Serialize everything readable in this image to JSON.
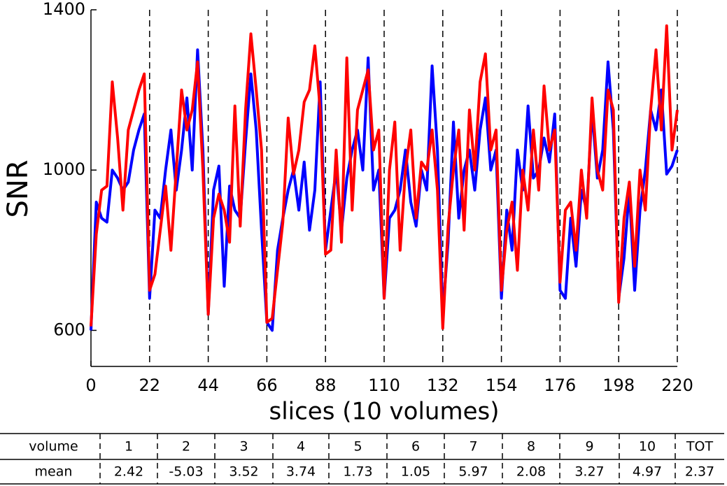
{
  "chart_data": {
    "type": "line",
    "ylabel": "SNR",
    "xlabel": "slices (10 volumes)",
    "x": [
      0,
      2,
      4,
      6,
      8,
      10,
      12,
      14,
      16,
      18,
      20,
      22,
      24,
      26,
      28,
      30,
      32,
      34,
      36,
      38,
      40,
      42,
      44,
      46,
      48,
      50,
      52,
      54,
      56,
      58,
      60,
      62,
      64,
      66,
      68,
      70,
      72,
      74,
      76,
      78,
      80,
      82,
      84,
      86,
      88,
      90,
      92,
      94,
      96,
      98,
      100,
      102,
      104,
      106,
      108,
      110,
      112,
      114,
      116,
      118,
      120,
      122,
      124,
      126,
      128,
      130,
      132,
      134,
      136,
      138,
      140,
      142,
      144,
      146,
      148,
      150,
      152,
      154,
      156,
      158,
      160,
      162,
      164,
      166,
      168,
      170,
      172,
      174,
      176,
      178,
      180,
      182,
      184,
      186,
      188,
      190,
      192,
      194,
      196,
      198,
      200,
      202,
      204,
      206,
      208,
      210,
      212,
      214,
      216,
      218,
      220
    ],
    "series": [
      {
        "color": "#0000ff",
        "values": [
          600,
          920,
          880,
          870,
          1000,
          980,
          950,
          970,
          1050,
          1100,
          1140,
          680,
          900,
          880,
          1000,
          1100,
          950,
          1050,
          1180,
          1000,
          1300,
          1050,
          640,
          950,
          1010,
          710,
          960,
          900,
          880,
          1070,
          1240,
          1100,
          850,
          620,
          600,
          800,
          880,
          950,
          1000,
          900,
          1020,
          850,
          950,
          1220,
          800,
          900,
          1000,
          850,
          980,
          1050,
          1100,
          1000,
          1280,
          950,
          1000,
          680,
          880,
          900,
          950,
          1050,
          920,
          860,
          1000,
          950,
          1260,
          1050,
          640,
          820,
          1120,
          880,
          1000,
          1050,
          950,
          1100,
          1180,
          1000,
          1050,
          680,
          900,
          800,
          1050,
          950,
          1160,
          980,
          1000,
          1080,
          1020,
          1140,
          700,
          680,
          880,
          760,
          950,
          900,
          1150,
          980,
          1050,
          1270,
          1100,
          680,
          780,
          950,
          700,
          900,
          1000,
          1150,
          1100,
          1200,
          990,
          1010,
          1050
        ]
      },
      {
        "color": "#ff0000",
        "values": [
          610,
          840,
          950,
          960,
          1220,
          1080,
          900,
          1100,
          1150,
          1200,
          1240,
          700,
          740,
          850,
          960,
          800,
          1000,
          1200,
          1100,
          1150,
          1270,
          1000,
          640,
          880,
          940,
          900,
          820,
          1160,
          860,
          1150,
          1340,
          1200,
          1050,
          620,
          630,
          750,
          870,
          1130,
          990,
          1050,
          1170,
          1200,
          1310,
          1150,
          790,
          800,
          1050,
          820,
          1280,
          900,
          1150,
          1200,
          1250,
          1050,
          1100,
          680,
          1000,
          1120,
          800,
          1000,
          1100,
          880,
          1020,
          1000,
          1100,
          950,
          605,
          860,
          1000,
          1100,
          850,
          1150,
          1000,
          1220,
          1290,
          1050,
          1100,
          700,
          850,
          920,
          750,
          1000,
          900,
          1100,
          950,
          1210,
          1050,
          1100,
          720,
          900,
          920,
          800,
          1000,
          880,
          1180,
          1000,
          950,
          1200,
          1150,
          670,
          880,
          970,
          760,
          1000,
          900,
          1150,
          1300,
          1100,
          1360,
          1050,
          1150
        ]
      }
    ],
    "xlim": [
      0,
      220
    ],
    "xticks": [
      0,
      22,
      44,
      66,
      88,
      110,
      132,
      154,
      176,
      198,
      220
    ],
    "ylim": [
      510,
      1400
    ],
    "yticks": [
      600,
      1000,
      1400
    ],
    "grid": "x-dashed"
  },
  "table": {
    "header": [
      "volume",
      "1",
      "2",
      "3",
      "4",
      "5",
      "6",
      "7",
      "8",
      "9",
      "10",
      "TOT"
    ],
    "rows": [
      [
        "mean",
        "2.42",
        "-5.03",
        "3.52",
        "3.74",
        "1.73",
        "1.05",
        "5.97",
        "2.08",
        "3.27",
        "4.97",
        "2.37"
      ]
    ]
  }
}
